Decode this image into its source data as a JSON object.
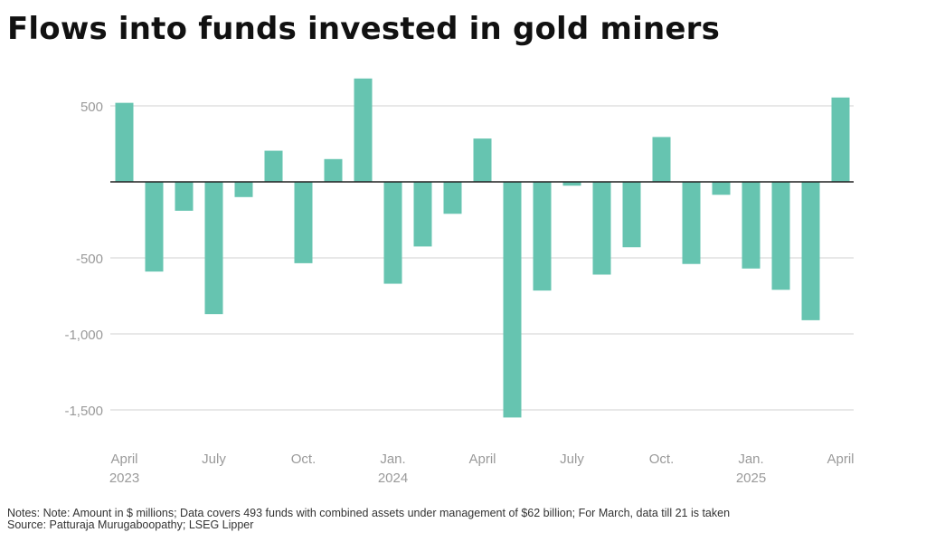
{
  "title": "Flows into funds invested in gold miners",
  "notes": "Notes: Note: Amount in $ millions; Data covers 493 funds with combined assets under management of $62 billion; For March, data till 21 is taken",
  "source": "Source: Patturaja Murugaboopathy; LSEG Lipper",
  "colors": {
    "bar": "#66c4b0",
    "grid": "#d9d9d9",
    "zero": "#222222",
    "tick": "#9a9a9a"
  },
  "chart_data": {
    "type": "bar",
    "ylabel": "",
    "xlabel": "",
    "ylim": [
      -1700,
      700
    ],
    "yticks": [
      500,
      -500,
      -1000,
      -1500
    ],
    "ytick_labels": [
      "500",
      "-500",
      "-1,000",
      "-1,500"
    ],
    "grid": true,
    "categories": [
      "2023-04",
      "2023-05",
      "2023-06",
      "2023-07",
      "2023-08",
      "2023-09",
      "2023-10",
      "2023-11",
      "2023-12",
      "2024-01",
      "2024-02",
      "2024-03",
      "2024-04",
      "2024-05",
      "2024-06",
      "2024-07",
      "2024-08",
      "2024-09",
      "2024-10",
      "2024-11",
      "2024-12",
      "2025-01",
      "2025-02",
      "2025-03",
      "2025-04"
    ],
    "values": [
      520,
      -590,
      -190,
      -870,
      -100,
      205,
      -535,
      150,
      680,
      -670,
      -425,
      -210,
      285,
      -1550,
      -715,
      -25,
      -610,
      -430,
      295,
      -540,
      -85,
      -570,
      -710,
      -910,
      555
    ],
    "xtick_labels": [
      {
        "index": 0,
        "line1": "April",
        "line2": "2023"
      },
      {
        "index": 3,
        "line1": "July",
        "line2": ""
      },
      {
        "index": 6,
        "line1": "Oct.",
        "line2": ""
      },
      {
        "index": 9,
        "line1": "Jan.",
        "line2": "2024"
      },
      {
        "index": 12,
        "line1": "April",
        "line2": ""
      },
      {
        "index": 15,
        "line1": "July",
        "line2": ""
      },
      {
        "index": 18,
        "line1": "Oct.",
        "line2": ""
      },
      {
        "index": 21,
        "line1": "Jan.",
        "line2": "2025"
      },
      {
        "index": 24,
        "line1": "April",
        "line2": ""
      }
    ]
  }
}
